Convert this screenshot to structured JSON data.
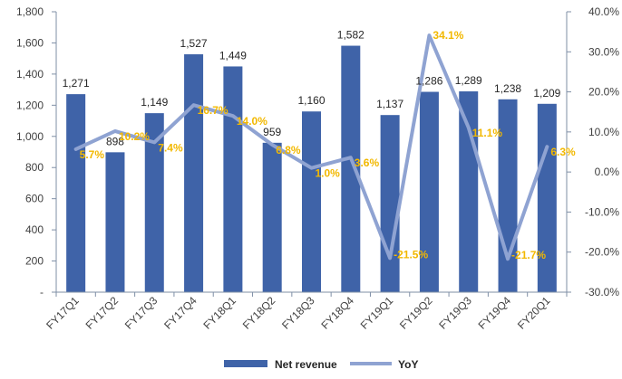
{
  "colors": {
    "bar": "#3F63A8",
    "line": "#8FA3D2",
    "yoy_label": "#F2B800",
    "axis": "#7F8FA6",
    "text": "#404040"
  },
  "legend": {
    "bar_label": "Net revenue",
    "line_label": "YoY",
    "placement": "bottom"
  },
  "chart_data": {
    "type": "bar",
    "categories": [
      "FY17Q1",
      "FY17Q2",
      "FY17Q3",
      "FY17Q4",
      "FY18Q1",
      "FY18Q2",
      "FY18Q3",
      "FY18Q4",
      "FY19Q1",
      "FY19Q2",
      "FY19Q3",
      "FY19Q4",
      "FY20Q1"
    ],
    "series": [
      {
        "name": "Net revenue",
        "type": "bar",
        "axis": "left",
        "values": [
          1271,
          898,
          1149,
          1527,
          1449,
          959,
          1160,
          1582,
          1137,
          1286,
          1289,
          1238,
          1209
        ],
        "labels": [
          "1,271",
          "898",
          "1,149",
          "1,527",
          "1,449",
          "959",
          "1,160",
          "1,582",
          "1,137",
          "1,286",
          "1,289",
          "1,238",
          "1,209"
        ]
      },
      {
        "name": "YoY",
        "type": "line",
        "axis": "right",
        "values": [
          5.7,
          10.2,
          7.4,
          16.7,
          14.0,
          6.8,
          1.0,
          3.6,
          -21.5,
          34.1,
          11.1,
          -21.7,
          6.3
        ],
        "labels": [
          "5.7%",
          "10.2%",
          "7.4%",
          "16.7%",
          "14.0%",
          "6.8%",
          "1.0%",
          "3.6%",
          "-21.5%",
          "34.1%",
          "11.1%",
          "-21.7%",
          "6.3%"
        ]
      }
    ],
    "y_left": {
      "min": 0,
      "max": 1800,
      "ticks": [
        0,
        200,
        400,
        600,
        800,
        1000,
        1200,
        1400,
        1600,
        1800
      ],
      "tick_labels": [
        "-",
        "200",
        "400",
        "600",
        "800",
        "1,000",
        "1,200",
        "1,400",
        "1,600",
        "1,800"
      ]
    },
    "y_right": {
      "min": -30,
      "max": 40,
      "ticks": [
        -30,
        -20,
        -10,
        0,
        10,
        20,
        30,
        40
      ],
      "tick_labels": [
        "-30.0%",
        "-20.0%",
        "-10.0%",
        "0.0%",
        "10.0%",
        "20.0%",
        "30.0%",
        "40.0%"
      ]
    },
    "grid": false
  }
}
